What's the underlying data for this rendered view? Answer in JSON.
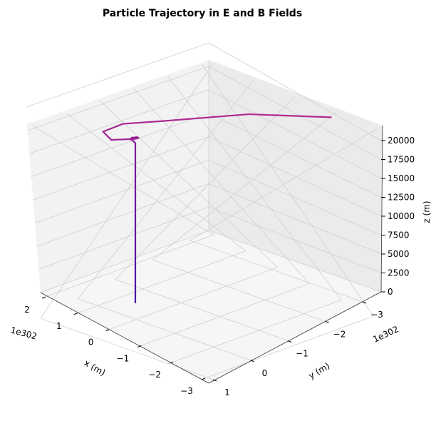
{
  "chart_data": {
    "type": "line3d",
    "title": "Particle Trajectory in E and B Fields",
    "xlabel": "x (m)",
    "ylabel": "y (m)",
    "zlabel": "z (m)",
    "x_offset_label": "1e302",
    "y_offset_label": "1e302",
    "x_ticks": [
      "2",
      "1",
      "0",
      "−1",
      "−2",
      "−3"
    ],
    "y_ticks": [
      "−3",
      "−2",
      "−1",
      "0",
      "1"
    ],
    "z_ticks": [
      "0",
      "2500",
      "5000",
      "7500",
      "10000",
      "12500",
      "15000",
      "17500",
      "20000"
    ],
    "grid": true,
    "colors": {
      "trajectory_start": "#4b0aa8",
      "trajectory_end": "#b22a8f",
      "pane": "#f2f2f2",
      "grid": "#cfcfcf"
    },
    "series": [
      {
        "points_xyz_scaled": [
          [
            0,
            0,
            0
          ],
          [
            0,
            0,
            1500
          ],
          [
            0,
            0,
            3000
          ],
          [
            0,
            0,
            4500
          ],
          [
            0,
            0,
            6000
          ],
          [
            0,
            0,
            7500
          ],
          [
            0,
            0,
            9000
          ],
          [
            0,
            0,
            10500
          ],
          [
            0,
            0,
            12000
          ],
          [
            0,
            0,
            13500
          ],
          [
            0,
            0,
            15000
          ],
          [
            0,
            0,
            16500
          ],
          [
            0,
            0,
            18000
          ],
          [
            0,
            0,
            19000
          ],
          [
            0,
            0,
            19600
          ],
          [
            0.05,
            0.05,
            20000
          ],
          [
            0.12,
            0.05,
            20050
          ],
          [
            0.15,
            -0.05,
            20100
          ],
          [
            0.05,
            -0.12,
            20150
          ],
          [
            -0.05,
            -0.05,
            20200
          ],
          [
            -0.08,
            0.1,
            20300
          ],
          [
            0.3,
            0.5,
            20400
          ],
          [
            0.9,
            0.1,
            20500
          ],
          [
            0.9,
            -0.6,
            20600
          ],
          [
            0.2,
            -1.2,
            20700
          ],
          [
            -1.2,
            -2.6,
            20800
          ],
          [
            -3.1,
            -3.3,
            20900
          ]
        ]
      }
    ]
  }
}
